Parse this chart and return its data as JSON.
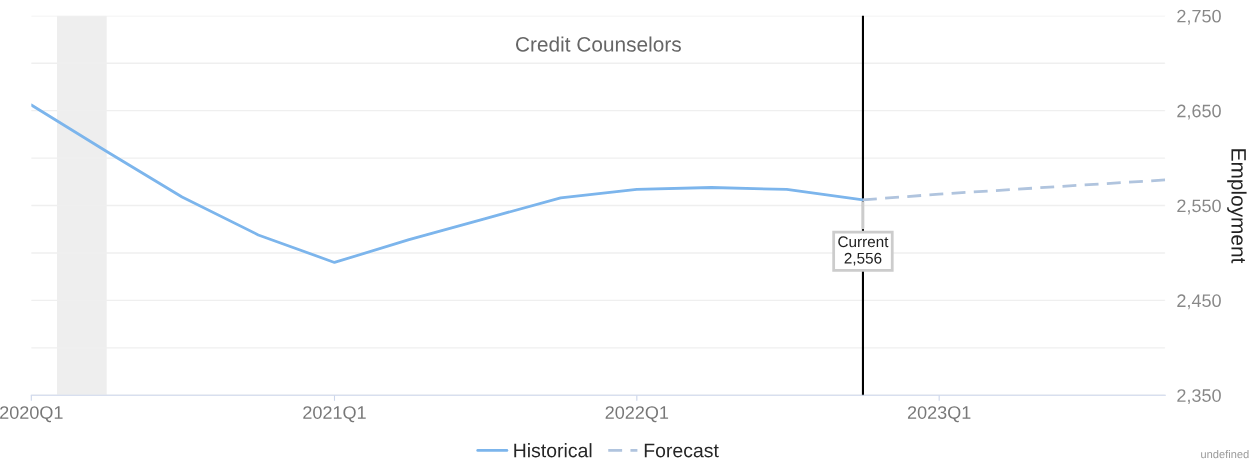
{
  "chart_data": {
    "type": "line",
    "title": "Credit Counselors",
    "ylabel": "Employment",
    "series": [
      {
        "name": "Historical",
        "color": "#7cb5ec",
        "line_style": "solid",
        "x": [
          "2020-01",
          "2020-04",
          "2020-07",
          "2020-10",
          "2021-01",
          "2021-04",
          "2021-07",
          "2021-10",
          "2022-01",
          "2022-04",
          "2022-07",
          "2022-10"
        ],
        "values": [
          2656,
          2607,
          2559,
          2519,
          2490,
          2514,
          2536,
          2558,
          2567,
          2569,
          2567,
          2556
        ]
      },
      {
        "name": "Forecast",
        "color": "#b0c4de",
        "line_style": "dashed",
        "x": [
          "2022-10",
          "2023-01",
          "2023-04",
          "2023-07",
          "2023-10"
        ],
        "values": [
          2556,
          2562,
          2567,
          2572,
          2577
        ]
      }
    ],
    "xlim": [
      "2020-01",
      "2023-10"
    ],
    "xticks": [
      {
        "value": "2020-01",
        "label": "2020Q1"
      },
      {
        "value": "2021-01",
        "label": "2021Q1"
      },
      {
        "value": "2022-01",
        "label": "2022Q1"
      },
      {
        "value": "2023-01",
        "label": "2023Q1"
      }
    ],
    "ylim": [
      2350,
      2750
    ],
    "yticks": [
      {
        "value": 2350,
        "label": "2,350"
      },
      {
        "value": 2400,
        "label": null
      },
      {
        "value": 2450,
        "label": "2,450"
      },
      {
        "value": 2500,
        "label": null
      },
      {
        "value": 2550,
        "label": "2,550"
      },
      {
        "value": 2600,
        "label": null
      },
      {
        "value": 2650,
        "label": "2,650"
      },
      {
        "value": 2700,
        "label": null
      },
      {
        "value": 2750,
        "label": "2,750"
      }
    ],
    "grid": "y",
    "legend": "bottom",
    "ref_lines": [
      {
        "axis": "x",
        "value": "2022-10",
        "color": "#000000"
      }
    ],
    "bands": [
      {
        "axis": "x",
        "from": "2020-02",
        "to": "2020-04",
        "color": "#eeeeee"
      }
    ],
    "annotations": [
      {
        "text": "Current\n2,556",
        "x": "2022-10",
        "y": 2556
      },
      "undefined"
    ]
  }
}
